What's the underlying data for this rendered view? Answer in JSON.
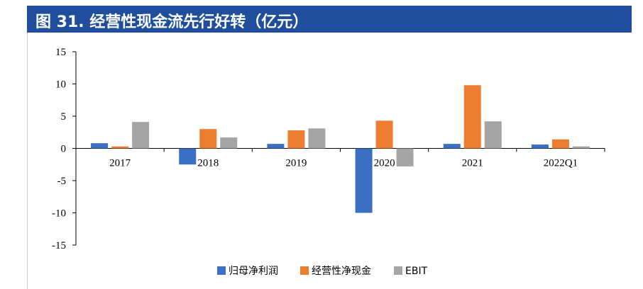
{
  "header": {
    "title": "图 31. 经营性现金流先行好转（亿元）"
  },
  "colors": {
    "header_bg": "#1f4e9c"
  },
  "chart_data": {
    "type": "bar",
    "categories": [
      "2017",
      "2018",
      "2019",
      "2020",
      "2021",
      "2022Q1"
    ],
    "series": [
      {
        "name": "归母净利润",
        "color": "#3a6fc4",
        "values": [
          0.8,
          -2.5,
          0.7,
          -10.0,
          0.7,
          0.6
        ]
      },
      {
        "name": "经营性净现金",
        "color": "#ed7d31",
        "values": [
          0.3,
          3.0,
          2.8,
          4.3,
          9.8,
          1.4
        ]
      },
      {
        "name": "EBIT",
        "color": "#a5a5a5",
        "values": [
          4.1,
          1.7,
          3.1,
          -2.8,
          4.2,
          0.3
        ]
      }
    ],
    "yticks": [
      15,
      10,
      5,
      0,
      -5,
      -10,
      -15
    ],
    "ylim": [
      -15,
      15
    ],
    "legend": "bottom",
    "grid": false
  }
}
